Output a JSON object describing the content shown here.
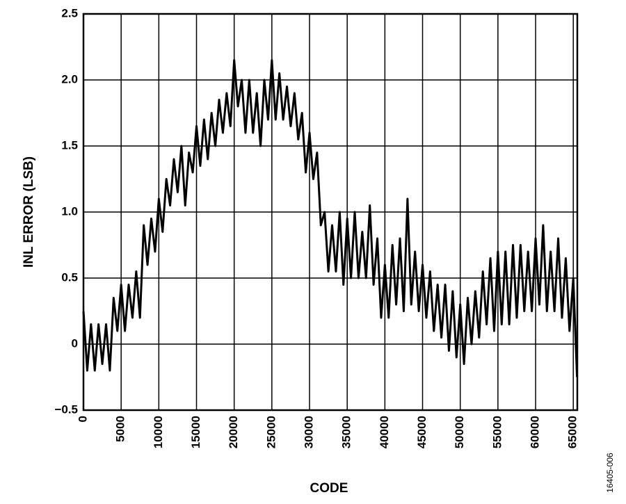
{
  "chart_data": {
    "type": "line",
    "x_label": "CODE",
    "y_label": "INL ERROR (LSB)",
    "figure_id": "16405-006",
    "x": [
      0,
      500,
      1000,
      1500,
      2000,
      2500,
      3000,
      3500,
      4000,
      4500,
      5000,
      5500,
      6000,
      6500,
      7000,
      7500,
      8000,
      8500,
      9000,
      9500,
      10000,
      10500,
      11000,
      11500,
      12000,
      12500,
      13000,
      13500,
      14000,
      14500,
      15000,
      15500,
      16000,
      16500,
      17000,
      17500,
      18000,
      18500,
      19000,
      19500,
      20000,
      20500,
      21000,
      21500,
      22000,
      22500,
      23000,
      23500,
      24000,
      24500,
      25000,
      25500,
      26000,
      26500,
      27000,
      27500,
      28000,
      28500,
      29000,
      29500,
      30000,
      30500,
      31000,
      31500,
      32000,
      32500,
      33000,
      33500,
      34000,
      34500,
      35000,
      35500,
      36000,
      36500,
      37000,
      37500,
      38000,
      38500,
      39000,
      39500,
      40000,
      40500,
      41000,
      41500,
      42000,
      42500,
      43000,
      43500,
      44000,
      44500,
      45000,
      45500,
      46000,
      46500,
      47000,
      47500,
      48000,
      48500,
      49000,
      49500,
      50000,
      50500,
      51000,
      51500,
      52000,
      52500,
      53000,
      53500,
      54000,
      54500,
      55000,
      55500,
      56000,
      56500,
      57000,
      57500,
      58000,
      58500,
      59000,
      59500,
      60000,
      60500,
      61000,
      61500,
      62000,
      62500,
      63000,
      63500,
      64000,
      64500,
      65000,
      65500
    ],
    "series": [
      {
        "color": "#000000",
        "values": [
          0.25,
          -0.2,
          0.15,
          -0.2,
          0.15,
          -0.15,
          0.15,
          -0.2,
          0.35,
          0.1,
          0.45,
          0.1,
          0.45,
          0.2,
          0.55,
          0.2,
          0.9,
          0.6,
          0.95,
          0.7,
          1.1,
          0.85,
          1.25,
          1.05,
          1.4,
          1.15,
          1.5,
          1.05,
          1.45,
          1.3,
          1.65,
          1.35,
          1.7,
          1.4,
          1.75,
          1.5,
          1.85,
          1.6,
          1.9,
          1.65,
          2.15,
          1.8,
          2.0,
          1.6,
          2.0,
          1.6,
          1.9,
          1.5,
          2.0,
          1.7,
          2.15,
          1.7,
          2.05,
          1.7,
          1.95,
          1.65,
          1.9,
          1.55,
          1.75,
          1.3,
          1.6,
          1.25,
          1.45,
          0.9,
          1.0,
          0.55,
          0.9,
          0.55,
          1.0,
          0.45,
          0.95,
          0.5,
          1.0,
          0.5,
          0.85,
          0.5,
          1.05,
          0.45,
          0.8,
          0.2,
          0.6,
          0.2,
          0.75,
          0.3,
          0.8,
          0.25,
          1.1,
          0.3,
          0.7,
          0.25,
          0.6,
          0.2,
          0.55,
          0.1,
          0.45,
          0.05,
          0.45,
          -0.05,
          0.4,
          -0.1,
          0.3,
          -0.15,
          0.35,
          0.0,
          0.4,
          0.05,
          0.55,
          0.15,
          0.65,
          0.1,
          0.7,
          0.15,
          0.7,
          0.15,
          0.75,
          0.2,
          0.75,
          0.25,
          0.7,
          0.25,
          0.8,
          0.3,
          0.9,
          0.25,
          0.7,
          0.25,
          0.8,
          0.2,
          0.65,
          0.1,
          0.5,
          -0.25
        ]
      }
    ],
    "xlim": [
      0,
      65535
    ],
    "ylim": [
      -0.5,
      2.5
    ],
    "xticks": [
      0,
      5000,
      10000,
      15000,
      20000,
      25000,
      30000,
      35000,
      40000,
      45000,
      50000,
      55000,
      60000,
      65000
    ],
    "yticks": [
      {
        "value": -0.5,
        "label": "−0.5"
      },
      0,
      {
        "value": 0.5,
        "label": "0.5"
      },
      {
        "value": 1,
        "label": "1.0"
      },
      {
        "value": 1.5,
        "label": "1.5"
      },
      {
        "value": 2,
        "label": "2.0"
      },
      2.5
    ],
    "grid": true
  }
}
